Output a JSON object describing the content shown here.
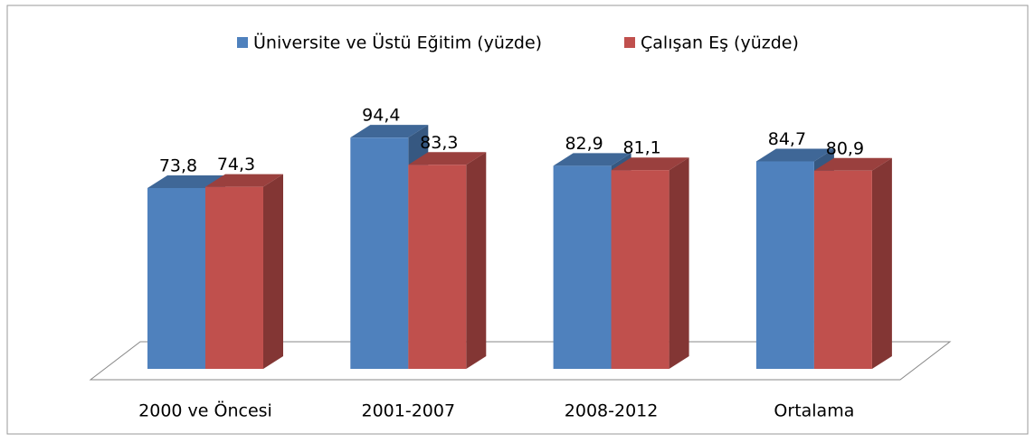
{
  "chart_data": {
    "type": "bar3d",
    "categories": [
      "2000 ve Öncesi",
      "2001-2007",
      "2008-2012",
      "Ortalama"
    ],
    "series": [
      {
        "name": "Üniversite ve Üstü Eğitim (yüzde)",
        "color": "#4f81bd",
        "values": [
          73.8,
          94.4,
          82.9,
          84.7
        ],
        "value_labels": [
          "73,8",
          "94,4",
          "82,9",
          "84,7"
        ]
      },
      {
        "name": "Çalışan Eş (yüzde)",
        "color": "#c0504d",
        "values": [
          74.3,
          83.3,
          81.1,
          80.9
        ],
        "value_labels": [
          "74,3",
          "83,3",
          "81,1",
          "80,9"
        ]
      }
    ],
    "legend": "top"
  }
}
